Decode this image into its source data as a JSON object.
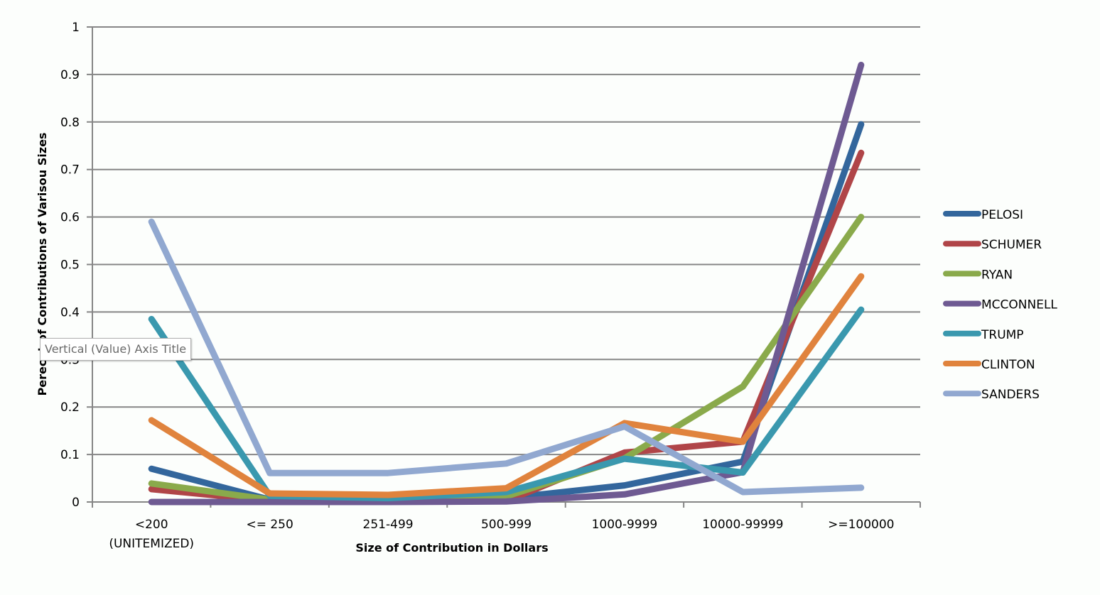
{
  "chart_data": {
    "type": "line",
    "title": "",
    "xlabel": "Size of Contribution in Dollars",
    "ylabel": "Perecnt of Contributions  of Varisou Sizes",
    "ylim": [
      0,
      1
    ],
    "yticks": [
      "0",
      "0.1",
      "0.2",
      "0.3",
      "0.4",
      "0.5",
      "0.6",
      "0.7",
      "0.8",
      "0.9",
      "1"
    ],
    "grid": true,
    "legend_position": "right",
    "categories": [
      [
        "<200",
        "(UNITEMIZED)"
      ],
      [
        "<= 250"
      ],
      [
        "251-499"
      ],
      [
        "500-999"
      ],
      [
        "1000-9999"
      ],
      [
        "10000-99999"
      ],
      [
        ">=100000"
      ]
    ],
    "series": [
      {
        "name": "PELOSI",
        "color": "#33669c",
        "values": [
          0.07,
          0.005,
          0.003,
          0.008,
          0.035,
          0.085,
          0.795
        ]
      },
      {
        "name": "SCHUMER",
        "color": "#b04548",
        "values": [
          0.027,
          0.003,
          0.001,
          0.002,
          0.104,
          0.127,
          0.735
        ]
      },
      {
        "name": "RYAN",
        "color": "#8aaa4b",
        "values": [
          0.039,
          0.005,
          0.005,
          0.012,
          0.092,
          0.243,
          0.6
        ]
      },
      {
        "name": "MCCONNELL",
        "color": "#6e5a92",
        "values": [
          0.0,
          0.0,
          0.0,
          0.001,
          0.016,
          0.063,
          0.92
        ]
      },
      {
        "name": "TRUMP",
        "color": "#3a98ae",
        "values": [
          0.385,
          0.013,
          0.008,
          0.021,
          0.091,
          0.062,
          0.405
        ]
      },
      {
        "name": "CLINTON",
        "color": "#e0833d",
        "values": [
          0.172,
          0.018,
          0.015,
          0.029,
          0.166,
          0.127,
          0.475
        ]
      },
      {
        "name": "SANDERS",
        "color": "#91a8d0",
        "values": [
          0.59,
          0.061,
          0.061,
          0.081,
          0.159,
          0.021,
          0.03
        ]
      }
    ]
  },
  "tooltip": {
    "text": "Vertical (Value) Axis Title"
  }
}
